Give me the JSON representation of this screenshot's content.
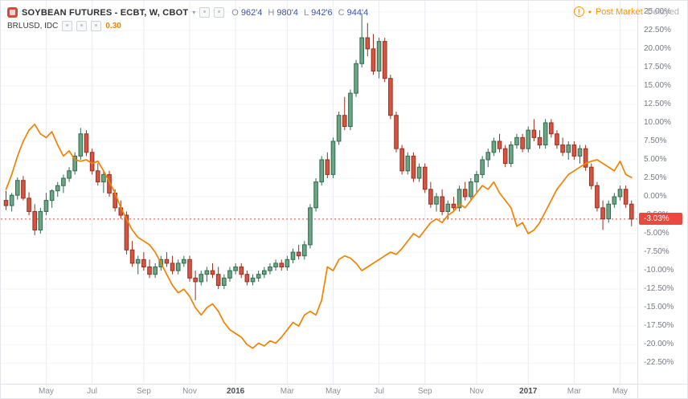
{
  "header": {
    "symbol_title": "SOYBEAN FUTURES - ECBT, W, CBOT",
    "ohlc": {
      "o_label": "O",
      "o_value": "962'4",
      "h_label": "H",
      "h_value": "980'4",
      "l_label": "L",
      "l_value": "942'6",
      "c_label": "C",
      "c_value": "944'4"
    },
    "compare_symbol": "BRLUSD, IDC",
    "compare_value": "0.30",
    "status": {
      "alert_icon_glyph": "!",
      "separator_dot": "•",
      "post_market_label": "Post Market",
      "delayed_label": "Delayed"
    }
  },
  "y_axis": {
    "labels": [
      "25.00%",
      "22.50%",
      "20.00%",
      "17.50%",
      "15.00%",
      "12.50%",
      "10.00%",
      "7.50%",
      "5.00%",
      "2.50%",
      "0.00%",
      "-2.50%",
      "-5.00%",
      "-7.50%",
      "-10.00%",
      "-12.50%",
      "-15.00%",
      "-17.50%",
      "-20.00%",
      "-22.50%"
    ],
    "values": [
      25,
      22.5,
      20,
      17.5,
      15,
      12.5,
      10,
      7.5,
      5,
      2.5,
      0,
      -2.5,
      -5,
      -7.5,
      -10,
      -12.5,
      -15,
      -17.5,
      -20,
      -22.5
    ]
  },
  "x_axis": {
    "labels": [
      {
        "text": "May",
        "index": 7,
        "major": false
      },
      {
        "text": "Jul",
        "index": 15,
        "major": false
      },
      {
        "text": "Sep",
        "index": 24,
        "major": false
      },
      {
        "text": "Nov",
        "index": 32,
        "major": false
      },
      {
        "text": "2016",
        "index": 40,
        "major": true
      },
      {
        "text": "Mar",
        "index": 49,
        "major": false
      },
      {
        "text": "May",
        "index": 57,
        "major": false
      },
      {
        "text": "Jul",
        "index": 65,
        "major": false
      },
      {
        "text": "Sep",
        "index": 73,
        "major": false
      },
      {
        "text": "Nov",
        "index": 82,
        "major": false
      },
      {
        "text": "2017",
        "index": 91,
        "major": true
      },
      {
        "text": "Mar",
        "index": 99,
        "major": false
      },
      {
        "text": "May",
        "index": 107,
        "major": false
      }
    ]
  },
  "last_value": {
    "label": "-3.03%",
    "value": -3.03
  },
  "colors": {
    "candle_up_fill": "#6ba583",
    "candle_up_border": "#2f6b4f",
    "candle_down_fill": "#d75442",
    "candle_down_border": "#96301f",
    "compare_line": "#f28200",
    "baseline": "#eb483f",
    "badge_bg": "#eb483f",
    "badge_text": "#ffffff",
    "grid_h": "#f2f4f8",
    "grid_v": "#e9ecf2",
    "post_market": "#f89500",
    "delayed": "#b0b3bb",
    "ohlc_label": "#8b8f99",
    "ohlc_value": "#3c55a5",
    "compare_value_text": "#f28200"
  },
  "chart_data": {
    "type": "candlestick",
    "overlay": "line",
    "symbol": "SOYBEAN FUTURES - ECBT, W, CBOT",
    "interval": "W",
    "unit": "percent_change",
    "ylim": [
      -25.3,
      26.5
    ],
    "baseline_value": -3.03,
    "candles_ohlc_pct": [
      [
        -0.5,
        0.8,
        -1.8,
        -1.2
      ],
      [
        -1.2,
        0.5,
        -2.0,
        0.2
      ],
      [
        0.2,
        2.6,
        -0.4,
        2.2
      ],
      [
        2.2,
        2.8,
        -0.5,
        -0.2
      ],
      [
        -0.2,
        0.6,
        -2.5,
        -2.0
      ],
      [
        -2.0,
        -1.0,
        -5.2,
        -4.5
      ],
      [
        -4.5,
        -1.5,
        -5.0,
        -2.0
      ],
      [
        -2.0,
        0.5,
        -2.5,
        -0.5
      ],
      [
        -0.5,
        1.0,
        -1.5,
        0.8
      ],
      [
        0.8,
        2.0,
        0.0,
        1.5
      ],
      [
        1.5,
        3.0,
        0.5,
        2.5
      ],
      [
        2.5,
        4.0,
        2.0,
        3.5
      ],
      [
        3.5,
        6.0,
        3.0,
        5.5
      ],
      [
        5.5,
        9.3,
        5.0,
        8.5
      ],
      [
        8.5,
        9.0,
        5.5,
        6.0
      ],
      [
        6.0,
        6.5,
        3.0,
        3.5
      ],
      [
        3.5,
        4.5,
        1.5,
        2.0
      ],
      [
        2.0,
        3.5,
        0.5,
        3.0
      ],
      [
        3.0,
        3.5,
        0.0,
        0.5
      ],
      [
        0.5,
        1.0,
        -2.0,
        -1.5
      ],
      [
        -1.5,
        -0.5,
        -3.0,
        -2.5
      ],
      [
        -2.5,
        -2.0,
        -7.8,
        -7.2
      ],
      [
        -7.2,
        -6.0,
        -9.5,
        -9.0
      ],
      [
        -9.0,
        -8.0,
        -10.5,
        -8.5
      ],
      [
        -8.5,
        -7.5,
        -10.0,
        -9.5
      ],
      [
        -9.5,
        -8.5,
        -11.0,
        -10.5
      ],
      [
        -10.5,
        -9.0,
        -11.0,
        -9.5
      ],
      [
        -9.5,
        -8.0,
        -10.0,
        -8.5
      ],
      [
        -8.5,
        -7.5,
        -9.5,
        -9.0
      ],
      [
        -9.0,
        -8.0,
        -10.5,
        -10.0
      ],
      [
        -10.0,
        -8.5,
        -10.5,
        -9.0
      ],
      [
        -9.0,
        -8.0,
        -9.5,
        -8.5
      ],
      [
        -8.5,
        -8.0,
        -11.5,
        -11.0
      ],
      [
        -11.0,
        -10.0,
        -14.0,
        -11.5
      ],
      [
        -11.5,
        -10.0,
        -12.0,
        -10.5
      ],
      [
        -10.5,
        -9.5,
        -11.5,
        -10.0
      ],
      [
        -10.0,
        -9.0,
        -11.0,
        -10.5
      ],
      [
        -10.5,
        -9.5,
        -12.5,
        -12.0
      ],
      [
        -12.0,
        -10.5,
        -12.5,
        -11.0
      ],
      [
        -11.0,
        -9.5,
        -11.5,
        -10.0
      ],
      [
        -10.0,
        -9.0,
        -10.5,
        -9.5
      ],
      [
        -9.5,
        -9.0,
        -11.0,
        -10.5
      ],
      [
        -10.5,
        -10.0,
        -12.0,
        -11.5
      ],
      [
        -11.5,
        -10.5,
        -12.0,
        -11.0
      ],
      [
        -11.0,
        -10.0,
        -11.5,
        -10.5
      ],
      [
        -10.5,
        -9.5,
        -11.0,
        -10.0
      ],
      [
        -10.0,
        -9.0,
        -10.5,
        -9.5
      ],
      [
        -9.5,
        -8.5,
        -10.0,
        -9.0
      ],
      [
        -9.0,
        -8.5,
        -10.0,
        -9.5
      ],
      [
        -9.5,
        -8.0,
        -10.0,
        -8.5
      ],
      [
        -8.5,
        -7.0,
        -9.0,
        -7.5
      ],
      [
        -7.5,
        -6.5,
        -8.5,
        -8.0
      ],
      [
        -8.0,
        -6.0,
        -8.5,
        -6.5
      ],
      [
        -6.5,
        -1.0,
        -7.0,
        -1.5
      ],
      [
        -1.5,
        2.5,
        -2.0,
        2.0
      ],
      [
        2.0,
        5.5,
        1.5,
        5.0
      ],
      [
        5.0,
        6.0,
        2.5,
        3.0
      ],
      [
        3.0,
        8.0,
        2.5,
        7.5
      ],
      [
        7.5,
        11.5,
        7.0,
        11.0
      ],
      [
        11.0,
        13.5,
        9.0,
        9.5
      ],
      [
        9.5,
        14.5,
        9.0,
        14.0
      ],
      [
        14.0,
        18.5,
        13.5,
        18.0
      ],
      [
        18.0,
        24.8,
        17.5,
        21.5
      ],
      [
        21.5,
        23.5,
        19.0,
        20.0
      ],
      [
        20.0,
        22.0,
        16.5,
        17.0
      ],
      [
        17.0,
        21.5,
        16.0,
        21.0
      ],
      [
        21.0,
        21.5,
        15.5,
        16.0
      ],
      [
        16.0,
        16.5,
        10.5,
        11.0
      ],
      [
        11.0,
        11.5,
        6.0,
        6.5
      ],
      [
        6.5,
        7.0,
        3.0,
        3.5
      ],
      [
        3.5,
        6.0,
        3.0,
        5.5
      ],
      [
        5.5,
        6.0,
        2.0,
        2.5
      ],
      [
        2.5,
        4.5,
        2.0,
        4.0
      ],
      [
        4.0,
        4.5,
        0.5,
        1.0
      ],
      [
        1.0,
        2.0,
        -1.5,
        -1.0
      ],
      [
        -1.0,
        0.5,
        -2.0,
        0.0
      ],
      [
        0.0,
        1.0,
        -2.5,
        -2.0
      ],
      [
        -2.0,
        -0.5,
        -3.0,
        -1.0
      ],
      [
        -1.0,
        0.0,
        -2.0,
        -1.5
      ],
      [
        -1.5,
        1.5,
        -2.0,
        1.0
      ],
      [
        1.0,
        2.0,
        -0.5,
        0.0
      ],
      [
        0.0,
        2.5,
        -0.5,
        2.0
      ],
      [
        2.0,
        3.5,
        0.5,
        3.0
      ],
      [
        3.0,
        5.5,
        2.5,
        5.0
      ],
      [
        5.0,
        6.5,
        4.0,
        6.0
      ],
      [
        6.0,
        8.0,
        5.5,
        7.5
      ],
      [
        7.5,
        8.5,
        6.0,
        6.5
      ],
      [
        6.5,
        7.0,
        4.0,
        4.5
      ],
      [
        4.5,
        7.5,
        4.0,
        7.0
      ],
      [
        7.0,
        8.5,
        6.5,
        8.0
      ],
      [
        8.0,
        8.5,
        6.0,
        6.5
      ],
      [
        6.5,
        9.5,
        6.0,
        9.0
      ],
      [
        9.0,
        10.5,
        7.5,
        8.0
      ],
      [
        8.0,
        9.0,
        6.5,
        7.0
      ],
      [
        7.0,
        10.5,
        6.5,
        10.0
      ],
      [
        10.0,
        10.5,
        8.0,
        8.5
      ],
      [
        8.5,
        9.0,
        6.5,
        7.0
      ],
      [
        7.0,
        8.0,
        5.5,
        6.0
      ],
      [
        6.0,
        7.5,
        5.0,
        7.0
      ],
      [
        7.0,
        7.5,
        5.0,
        5.5
      ],
      [
        5.5,
        7.0,
        4.5,
        6.5
      ],
      [
        6.5,
        7.0,
        3.5,
        4.0
      ],
      [
        4.0,
        4.5,
        1.0,
        1.5
      ],
      [
        1.5,
        2.0,
        -2.0,
        -1.5
      ],
      [
        -1.5,
        -0.5,
        -4.5,
        -3.0
      ],
      [
        -3.0,
        -0.5,
        -3.5,
        -1.0
      ],
      [
        -1.0,
        0.5,
        -1.5,
        0.0
      ],
      [
        0.0,
        1.5,
        -0.5,
        1.0
      ],
      [
        1.0,
        1.5,
        -1.5,
        -1.0
      ],
      [
        -1.0,
        -0.5,
        -4.0,
        -3.03
      ]
    ],
    "compare_series": {
      "name": "BRLUSD, IDC",
      "values": [
        1.0,
        3.0,
        5.5,
        7.5,
        9.0,
        9.8,
        8.5,
        8.0,
        8.8,
        7.0,
        5.5,
        6.2,
        5.0,
        4.8,
        5.0,
        4.5,
        4.8,
        3.5,
        2.0,
        0.5,
        -1.5,
        -3.0,
        -4.5,
        -5.5,
        -6.0,
        -6.5,
        -7.5,
        -9.0,
        -10.5,
        -12.0,
        -13.0,
        -12.5,
        -13.5,
        -15.0,
        -16.0,
        -15.0,
        -14.5,
        -15.5,
        -17.0,
        -18.0,
        -18.5,
        -19.0,
        -20.0,
        -20.5,
        -19.8,
        -20.2,
        -19.5,
        -19.8,
        -19.0,
        -18.0,
        -17.0,
        -17.5,
        -16.0,
        -15.5,
        -16.0,
        -14.0,
        -9.5,
        -10.0,
        -8.5,
        -8.0,
        -8.3,
        -9.0,
        -10.0,
        -9.5,
        -9.0,
        -8.5,
        -8.0,
        -7.5,
        -7.8,
        -7.0,
        -6.0,
        -5.0,
        -5.5,
        -4.5,
        -3.5,
        -3.0,
        -3.5,
        -2.5,
        -2.0,
        -1.0,
        -1.5,
        -0.5,
        0.5,
        1.5,
        1.0,
        2.0,
        0.5,
        -0.5,
        -1.5,
        -4.0,
        -3.5,
        -5.0,
        -4.5,
        -3.5,
        -2.0,
        -0.5,
        1.0,
        2.0,
        3.0,
        3.5,
        4.0,
        4.5,
        4.8,
        5.0,
        4.5,
        4.0,
        3.5,
        4.8,
        3.0,
        2.6
      ]
    }
  }
}
